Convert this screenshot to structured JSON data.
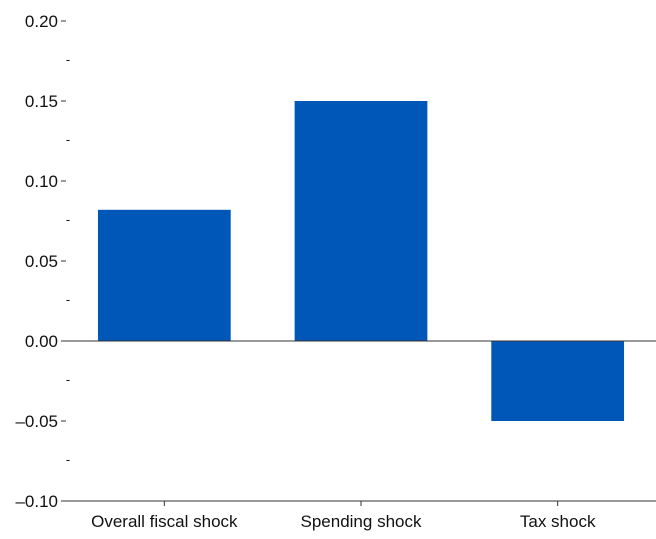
{
  "chart_data": {
    "type": "bar",
    "title": "",
    "xlabel": "",
    "ylabel": "",
    "categories": [
      "Overall fiscal shock",
      "Spending shock",
      "Tax shock"
    ],
    "values": [
      0.082,
      0.15,
      -0.05
    ],
    "ylim": [
      -0.1,
      0.2
    ],
    "y_ticks": [
      {
        "value": 0.2,
        "label": "0.20"
      },
      {
        "value": 0.175,
        "label": "-"
      },
      {
        "value": 0.15,
        "label": "0.15"
      },
      {
        "value": 0.125,
        "label": "-"
      },
      {
        "value": 0.1,
        "label": "0.10"
      },
      {
        "value": 0.075,
        "label": "-"
      },
      {
        "value": 0.05,
        "label": "0.05"
      },
      {
        "value": 0.025,
        "label": "-"
      },
      {
        "value": 0.0,
        "label": "0.00"
      },
      {
        "value": -0.025,
        "label": "-"
      },
      {
        "value": -0.05,
        "label": "–0.05"
      },
      {
        "value": -0.075,
        "label": "-"
      },
      {
        "value": -0.1,
        "label": "–0.10"
      }
    ],
    "grid": false,
    "legend": "none",
    "colors": {
      "bar": "#0057B8",
      "axis": "#333333",
      "text": "#111111"
    }
  }
}
